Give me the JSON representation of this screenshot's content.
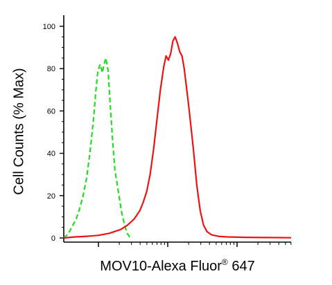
{
  "chart_data": {
    "type": "line",
    "ylabel": "Cell Counts (% Max)",
    "xlabel": "MOV10-Alexa Fluor",
    "xlabel_sup": "®",
    "xlabel_suffix": " 647",
    "xscale": "log (unlabeled tick marks)",
    "xlim": [
      0,
      100
    ],
    "ylim": [
      0,
      100
    ],
    "yticks": [
      0,
      20,
      40,
      60,
      80,
      100
    ],
    "ytick_labels": [
      "0",
      "20",
      "40",
      "60",
      "80",
      "100"
    ],
    "grid": false,
    "legend": "none",
    "series": [
      {
        "color": "#22dd22",
        "style": "dashed",
        "x": [
          0,
          2,
          4,
          5.5,
          7,
          8.5,
          10,
          11.5,
          13,
          14,
          15,
          16,
          17,
          17.5,
          18.5,
          19.5,
          20.5,
          21.5,
          22.5,
          24,
          25.5,
          27,
          28,
          29,
          30
        ],
        "y": [
          0,
          2,
          6,
          9,
          14,
          20,
          28,
          40,
          55,
          68,
          79,
          82,
          78,
          81,
          85,
          79,
          62,
          46,
          32,
          22,
          12,
          5,
          2,
          0.5,
          0
        ]
      },
      {
        "color": "#ee1111",
        "style": "solid",
        "x": [
          0,
          5,
          10,
          15,
          20,
          25,
          28,
          31,
          33.5,
          35,
          36.5,
          38,
          39.5,
          41,
          42.5,
          44,
          45,
          46,
          47,
          48,
          49,
          50,
          51,
          52,
          53,
          55,
          57,
          58.5,
          60,
          61.5,
          63,
          65,
          68,
          72,
          80,
          90,
          100
        ],
        "y": [
          0,
          0.5,
          0.8,
          1.2,
          2.2,
          4,
          6,
          9,
          13,
          17,
          22,
          30,
          42,
          56,
          70,
          81,
          86,
          84,
          87,
          93,
          95,
          92,
          88,
          86,
          80,
          62,
          42,
          25,
          13,
          6,
          3,
          1.5,
          0.8,
          0.5,
          0.3,
          0.2,
          0.1
        ]
      }
    ]
  }
}
